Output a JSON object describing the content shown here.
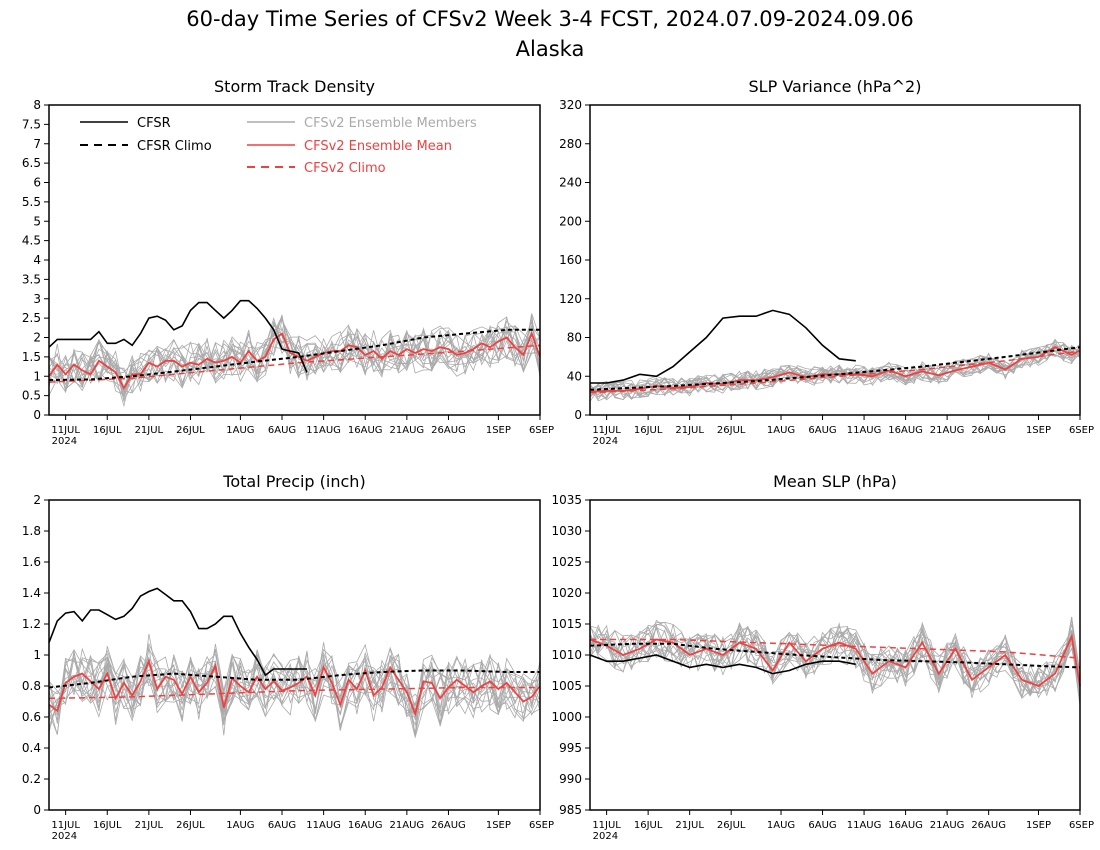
{
  "figure": {
    "title_line1": "60-day Time Series of CFSv2 Week 3-4 FCST, 2024.07.09-2024.09.06",
    "title_line2": "Alaska"
  },
  "legend": {
    "entries": [
      {
        "label": "CFSR",
        "color": "#000000",
        "dash": "solid"
      },
      {
        "label": "CFSR Climo",
        "color": "#000000",
        "dash": "dashed"
      },
      {
        "label": "CFSv2 Ensemble Members",
        "color": "#aaaaaa",
        "dash": "solid"
      },
      {
        "label": "CFSv2 Ensemble Mean",
        "color": "#f04040",
        "dash": "solid"
      },
      {
        "label": "CFSv2 Climo",
        "color": "#f04040",
        "dash": "dashed"
      }
    ]
  },
  "colors": {
    "cfsr": "#000000",
    "members": "#aaaaaa",
    "ens_mean": "#f04040",
    "cfsv2_climo": "#f04040"
  },
  "x_axis": {
    "tick_days": [
      2,
      7,
      12,
      17,
      23,
      28,
      33,
      38,
      43,
      48,
      54,
      59
    ],
    "tick_labels": [
      "11JUL",
      "16JUL",
      "21JUL",
      "26JUL",
      "1AUG",
      "6AUG",
      "11AUG",
      "16AUG",
      "21AUG",
      "26AUG",
      "1SEP",
      "6SEP"
    ],
    "year_label": "2024",
    "range_days": [
      0,
      59
    ]
  },
  "chart_data": [
    {
      "type": "line",
      "title": "Storm Track Density",
      "ylim": [
        0,
        8
      ],
      "yticks": [
        0,
        0.5,
        1,
        1.5,
        2,
        2.5,
        3,
        3.5,
        4,
        4.5,
        5,
        5.5,
        6,
        6.5,
        7,
        7.5,
        8
      ],
      "yticklabels": [
        "0",
        "0.5",
        "1",
        "1.5",
        "2",
        "2.5",
        "3",
        "3.5",
        "4",
        "4.5",
        "5",
        "5.5",
        "6",
        "6.5",
        "7",
        "7.5",
        "8"
      ],
      "show_legend": true,
      "series": [
        {
          "name": "CFSR",
          "role": "cfsr",
          "x": [
            0,
            1,
            2,
            3,
            4,
            5,
            6,
            7,
            8,
            9,
            10,
            11,
            12,
            13,
            14,
            15,
            16,
            17,
            18,
            19,
            20,
            21,
            22,
            23,
            24,
            25,
            26,
            27,
            28,
            29,
            30,
            31
          ],
          "values": [
            1.75,
            1.95,
            1.95,
            1.95,
            1.95,
            1.95,
            2.15,
            1.85,
            1.85,
            1.95,
            1.8,
            2.1,
            2.5,
            2.55,
            2.45,
            2.2,
            2.3,
            2.7,
            2.9,
            2.9,
            2.7,
            2.5,
            2.7,
            2.95,
            2.95,
            2.75,
            2.5,
            2.2,
            1.7,
            1.65,
            1.6,
            1.1
          ]
        },
        {
          "name": "CFSR Climo",
          "role": "cfsr_climo",
          "x": [
            0,
            5,
            10,
            15,
            20,
            25,
            30,
            35,
            40,
            45,
            50,
            55,
            59
          ],
          "values": [
            0.9,
            0.92,
            1.0,
            1.12,
            1.25,
            1.38,
            1.5,
            1.65,
            1.8,
            2.0,
            2.1,
            2.2,
            2.2
          ]
        },
        {
          "name": "CFSv2 Climo",
          "role": "cfsv2_climo",
          "x": [
            0,
            10,
            20,
            30,
            40,
            50,
            59
          ],
          "values": [
            0.85,
            0.95,
            1.15,
            1.35,
            1.5,
            1.65,
            1.8
          ]
        },
        {
          "name": "CFSv2 Ensemble Mean",
          "role": "ens_mean",
          "x": [
            0,
            1,
            2,
            3,
            4,
            5,
            6,
            7,
            8,
            9,
            10,
            11,
            12,
            13,
            14,
            15,
            16,
            17,
            18,
            19,
            20,
            21,
            22,
            23,
            24,
            25,
            26,
            27,
            28,
            29,
            30,
            31,
            32,
            33,
            34,
            35,
            36,
            37,
            38,
            39,
            40,
            41,
            42,
            43,
            44,
            45,
            46,
            47,
            48,
            49,
            50,
            51,
            52,
            53,
            54,
            55,
            56,
            57,
            58,
            59
          ],
          "values": [
            1.0,
            1.3,
            1.05,
            1.3,
            1.15,
            1.05,
            1.4,
            1.25,
            1.1,
            0.7,
            1.05,
            1.05,
            1.35,
            1.25,
            1.4,
            1.4,
            1.25,
            1.35,
            1.3,
            1.45,
            1.35,
            1.4,
            1.5,
            1.35,
            1.65,
            1.4,
            1.5,
            1.95,
            2.1,
            1.6,
            1.5,
            1.4,
            1.5,
            1.6,
            1.65,
            1.65,
            1.8,
            1.75,
            1.55,
            1.65,
            1.45,
            1.65,
            1.55,
            1.7,
            1.6,
            1.7,
            1.65,
            1.75,
            1.7,
            1.55,
            1.6,
            1.7,
            1.85,
            1.75,
            1.9,
            2.0,
            1.75,
            1.55,
            2.1,
            1.5
          ]
        }
      ]
    },
    {
      "type": "line",
      "title": "SLP Variance (hPa^2)",
      "ylim": [
        0,
        320
      ],
      "yticks": [
        0,
        40,
        80,
        120,
        160,
        200,
        240,
        280,
        320
      ],
      "yticklabels": [
        "0",
        "40",
        "80",
        "120",
        "160",
        "200",
        "240",
        "280",
        "320"
      ],
      "show_legend": false,
      "series": [
        {
          "name": "CFSR",
          "role": "cfsr",
          "x": [
            0,
            2,
            4,
            6,
            8,
            10,
            12,
            14,
            16,
            18,
            20,
            22,
            24,
            26,
            28,
            30,
            32
          ],
          "values": [
            33,
            33,
            36,
            42,
            40,
            50,
            65,
            80,
            100,
            102,
            102,
            108,
            104,
            90,
            72,
            58,
            56
          ]
        },
        {
          "name": "CFSR Climo",
          "role": "cfsr_climo",
          "x": [
            0,
            10,
            20,
            30,
            40,
            50,
            59
          ],
          "values": [
            26,
            30,
            35,
            42,
            50,
            60,
            70
          ]
        },
        {
          "name": "CFSv2 Climo",
          "role": "cfsv2_climo",
          "x": [
            0,
            10,
            20,
            30,
            40,
            50,
            59
          ],
          "values": [
            23,
            27,
            33,
            40,
            47,
            56,
            66
          ]
        },
        {
          "name": "CFSv2 Ensemble Mean",
          "role": "ens_mean",
          "x": [
            0,
            2,
            4,
            6,
            8,
            10,
            12,
            14,
            16,
            18,
            20,
            22,
            24,
            26,
            28,
            30,
            32,
            34,
            36,
            38,
            40,
            42,
            44,
            46,
            48,
            50,
            52,
            54,
            56,
            58,
            59
          ],
          "values": [
            24,
            25,
            25,
            27,
            30,
            28,
            29,
            33,
            32,
            36,
            36,
            39,
            44,
            39,
            42,
            42,
            42,
            40,
            46,
            40,
            45,
            41,
            46,
            50,
            54,
            47,
            58,
            60,
            70,
            62,
            67
          ]
        }
      ]
    },
    {
      "type": "line",
      "title": "Total Precip (inch)",
      "ylim": [
        0,
        2
      ],
      "yticks": [
        0,
        0.2,
        0.4,
        0.6,
        0.8,
        1,
        1.2,
        1.4,
        1.6,
        1.8,
        2
      ],
      "yticklabels": [
        "0",
        "0.2",
        "0.4",
        "0.6",
        "0.8",
        "1",
        "1.2",
        "1.4",
        "1.6",
        "1.8",
        "2"
      ],
      "show_legend": false,
      "series": [
        {
          "name": "CFSR",
          "role": "cfsr",
          "x": [
            0,
            1,
            2,
            3,
            4,
            5,
            6,
            7,
            8,
            9,
            10,
            11,
            12,
            13,
            14,
            15,
            16,
            17,
            18,
            19,
            20,
            21,
            22,
            23,
            24,
            25,
            26,
            27,
            28,
            29,
            30,
            31
          ],
          "values": [
            1.08,
            1.22,
            1.27,
            1.28,
            1.22,
            1.29,
            1.29,
            1.26,
            1.23,
            1.25,
            1.3,
            1.38,
            1.41,
            1.43,
            1.39,
            1.35,
            1.35,
            1.28,
            1.17,
            1.17,
            1.2,
            1.25,
            1.25,
            1.14,
            1.05,
            0.97,
            0.87,
            0.91,
            0.91,
            0.91,
            0.91,
            0.91
          ]
        },
        {
          "name": "CFSR Climo",
          "role": "cfsr_climo",
          "x": [
            0,
            5,
            10,
            15,
            20,
            25,
            30,
            35,
            40,
            45,
            50,
            55,
            59
          ],
          "values": [
            0.79,
            0.82,
            0.86,
            0.88,
            0.86,
            0.84,
            0.84,
            0.87,
            0.89,
            0.9,
            0.9,
            0.89,
            0.89
          ]
        },
        {
          "name": "CFSv2 Climo",
          "role": "cfsv2_climo",
          "x": [
            0,
            10,
            20,
            30,
            40,
            50,
            59
          ],
          "values": [
            0.72,
            0.73,
            0.75,
            0.77,
            0.78,
            0.79,
            0.79
          ]
        },
        {
          "name": "CFSv2 Ensemble Mean",
          "role": "ens_mean",
          "x": [
            0,
            1,
            2,
            3,
            4,
            5,
            6,
            7,
            8,
            9,
            10,
            11,
            12,
            13,
            14,
            15,
            16,
            17,
            18,
            19,
            20,
            21,
            22,
            23,
            24,
            25,
            26,
            27,
            28,
            29,
            30,
            31,
            32,
            33,
            34,
            35,
            36,
            37,
            38,
            39,
            40,
            41,
            42,
            43,
            44,
            45,
            46,
            47,
            48,
            49,
            50,
            51,
            52,
            53,
            54,
            55,
            56,
            57,
            58,
            59
          ],
          "values": [
            0.68,
            0.64,
            0.82,
            0.86,
            0.88,
            0.83,
            0.78,
            0.88,
            0.72,
            0.82,
            0.74,
            0.83,
            0.96,
            0.78,
            0.86,
            0.84,
            0.75,
            0.86,
            0.76,
            0.82,
            0.93,
            0.66,
            0.85,
            0.8,
            0.76,
            0.86,
            0.78,
            0.83,
            0.77,
            0.79,
            0.82,
            0.86,
            0.74,
            0.92,
            0.82,
            0.68,
            0.84,
            0.78,
            0.9,
            0.74,
            0.79,
            0.92,
            0.84,
            0.76,
            0.62,
            0.83,
            0.82,
            0.72,
            0.79,
            0.84,
            0.8,
            0.76,
            0.8,
            0.83,
            0.78,
            0.82,
            0.76,
            0.7,
            0.73,
            0.8
          ]
        }
      ]
    },
    {
      "type": "line",
      "title": "Mean SLP (hPa)",
      "ylim": [
        985,
        1035
      ],
      "yticks": [
        985,
        990,
        995,
        1000,
        1005,
        1010,
        1015,
        1020,
        1025,
        1030,
        1035
      ],
      "yticklabels": [
        "985",
        "990",
        "995",
        "1000",
        "1005",
        "1010",
        "1015",
        "1020",
        "1025",
        "1030",
        "1035"
      ],
      "show_legend": false,
      "series": [
        {
          "name": "CFSR",
          "role": "cfsr",
          "x": [
            0,
            2,
            4,
            6,
            8,
            10,
            12,
            14,
            16,
            18,
            20,
            22,
            24,
            26,
            28,
            30,
            32
          ],
          "values": [
            1010,
            1009,
            1009,
            1009.5,
            1010,
            1009,
            1008,
            1008.5,
            1008,
            1008.5,
            1008,
            1007,
            1007.5,
            1008.5,
            1009,
            1009,
            1008.5
          ]
        },
        {
          "name": "CFSR Climo",
          "role": "cfsr_climo",
          "x": [
            0,
            5,
            10,
            15,
            20,
            25,
            30,
            35,
            40,
            45,
            50,
            55,
            59
          ],
          "values": [
            1011.5,
            1011.8,
            1011.8,
            1011,
            1010.5,
            1010,
            1009.6,
            1009.2,
            1009,
            1008.8,
            1008.5,
            1008.2,
            1008
          ]
        },
        {
          "name": "CFSv2 Climo",
          "role": "cfsv2_climo",
          "x": [
            0,
            10,
            20,
            30,
            40,
            50,
            59
          ],
          "values": [
            1012.5,
            1012.5,
            1012,
            1011.5,
            1011,
            1010.5,
            1009.5
          ]
        },
        {
          "name": "CFSv2 Ensemble Mean",
          "role": "ens_mean",
          "x": [
            0,
            2,
            4,
            6,
            8,
            10,
            12,
            14,
            16,
            18,
            20,
            22,
            24,
            26,
            28,
            30,
            32,
            34,
            36,
            38,
            40,
            42,
            44,
            46,
            48,
            50,
            52,
            54,
            56,
            58,
            59
          ],
          "values": [
            1012.5,
            1011.5,
            1010,
            1011,
            1012.5,
            1012,
            1010,
            1011,
            1010,
            1012,
            1011,
            1007.5,
            1012,
            1009,
            1011,
            1012,
            1011,
            1007,
            1009,
            1008,
            1012,
            1007,
            1011,
            1006,
            1008,
            1010,
            1006,
            1005,
            1007,
            1013,
            1005
          ]
        }
      ]
    }
  ]
}
